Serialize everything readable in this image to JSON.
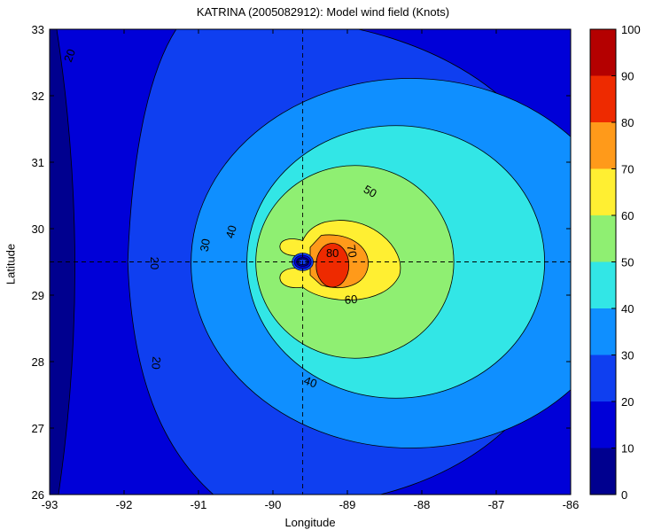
{
  "chart_data": {
    "type": "heatmap",
    "subtype": "filled-contour",
    "title": "KATRINA (2005082912): Model wind field (Knots)",
    "xlabel": "Longitude",
    "ylabel": "Latitude",
    "xlim": [
      -93,
      -86
    ],
    "ylim": [
      26,
      33
    ],
    "xticks": [
      -93,
      -92,
      -91,
      -90,
      -89,
      -88,
      -87,
      -86
    ],
    "yticks": [
      26,
      27,
      28,
      29,
      30,
      31,
      32,
      33
    ],
    "colorbar": {
      "range": [
        0,
        100
      ],
      "ticks": [
        0,
        10,
        20,
        30,
        40,
        50,
        60,
        70,
        80,
        90,
        100
      ],
      "colormap": "jet"
    },
    "storm_center": {
      "lon": -89.6,
      "lat": 29.5
    },
    "crosshair": {
      "lon": -89.6,
      "lat": 29.5,
      "style": "dashed"
    },
    "contour_levels": [
      20,
      30,
      40,
      50,
      60,
      70,
      80
    ],
    "level_colors": {
      "0": "#00008f",
      "10": "#0000d8",
      "20": "#0f3ff0",
      "30": "#0f8fff",
      "40": "#32e6e6",
      "50": "#8fef72",
      "60": "#ffef32",
      "70": "#ff9a1a",
      "80": "#ee2a00",
      "90": "#b40000"
    },
    "contour_labels": [
      {
        "text": "20",
        "lon": -92.72,
        "lat": 32.6,
        "rotation": -70
      },
      {
        "text": "20",
        "lon": -91.6,
        "lat": 29.48,
        "rotation": 90
      },
      {
        "text": "20",
        "lon": -91.58,
        "lat": 27.98,
        "rotation": 95
      },
      {
        "text": "30",
        "lon": -90.9,
        "lat": 29.75,
        "rotation": -80
      },
      {
        "text": "40",
        "lon": -90.55,
        "lat": 29.95,
        "rotation": -75
      },
      {
        "text": "40",
        "lon": -89.5,
        "lat": 27.68,
        "rotation": 20
      },
      {
        "text": "50",
        "lon": -88.7,
        "lat": 30.55,
        "rotation": 30
      },
      {
        "text": "60",
        "lon": -88.95,
        "lat": 28.92,
        "rotation": -5
      },
      {
        "text": "70",
        "lon": -88.95,
        "lat": 29.66,
        "rotation": 80
      },
      {
        "text": "80",
        "lon": -89.2,
        "lat": 29.62,
        "rotation": 0
      }
    ]
  }
}
